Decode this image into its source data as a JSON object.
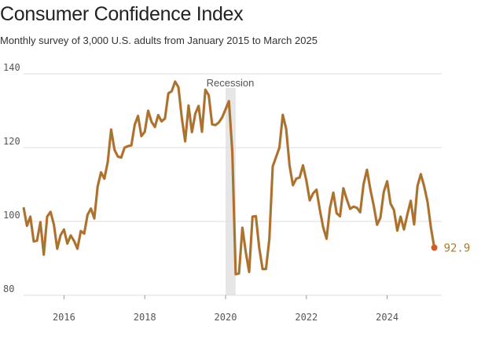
{
  "title": "Consumer Confidence Index",
  "subtitle": "Monthly survey of 3,000 U.S. adults from January 2015 to March 2025",
  "chart_data": {
    "type": "line",
    "title": "Consumer Confidence Index",
    "subtitle": "Monthly survey of 3,000 U.S. adults from January 2015 to March 2025",
    "ylim": [
      80,
      140
    ],
    "xlim": [
      2015,
      2025.35
    ],
    "y_ticks": [
      80,
      100,
      120,
      140
    ],
    "x_ticks": [
      2016,
      2018,
      2020,
      2022,
      2024
    ],
    "x_tick_labels": [
      "2016",
      "2018",
      "2020",
      "2022",
      "2024"
    ],
    "grid": "horizontal",
    "annotation": {
      "label": "Recession",
      "x_start": 2020.0,
      "x_end": 2020.25
    },
    "last_value_label": "92.9",
    "colors": {
      "line": "#9a7a2a",
      "accent": "#d35a2a",
      "grid": "#dddddd",
      "shade": "#e6e6e6"
    },
    "series": [
      {
        "values": [
          [
            2015.0,
            103.8
          ],
          [
            2015.083,
            98.8
          ],
          [
            2015.167,
            101.3
          ],
          [
            2015.25,
            94.6
          ],
          [
            2015.333,
            94.8
          ],
          [
            2015.417,
            99.8
          ],
          [
            2015.5,
            91.0
          ],
          [
            2015.583,
            101.3
          ],
          [
            2015.667,
            102.6
          ],
          [
            2015.75,
            99.1
          ],
          [
            2015.833,
            92.6
          ],
          [
            2015.917,
            96.3
          ],
          [
            2016.0,
            97.8
          ],
          [
            2016.083,
            94.0
          ],
          [
            2016.167,
            96.2
          ],
          [
            2016.25,
            94.7
          ],
          [
            2016.333,
            92.6
          ],
          [
            2016.417,
            97.4
          ],
          [
            2016.5,
            96.7
          ],
          [
            2016.583,
            101.8
          ],
          [
            2016.667,
            103.5
          ],
          [
            2016.75,
            100.8
          ],
          [
            2016.833,
            109.4
          ],
          [
            2016.917,
            113.3
          ],
          [
            2017.0,
            111.6
          ],
          [
            2017.083,
            116.1
          ],
          [
            2017.167,
            124.9
          ],
          [
            2017.25,
            119.4
          ],
          [
            2017.333,
            117.6
          ],
          [
            2017.417,
            117.3
          ],
          [
            2017.5,
            120.0
          ],
          [
            2017.583,
            120.4
          ],
          [
            2017.667,
            120.6
          ],
          [
            2017.75,
            126.2
          ],
          [
            2017.833,
            128.6
          ],
          [
            2017.917,
            123.1
          ],
          [
            2018.0,
            124.3
          ],
          [
            2018.083,
            130.0
          ],
          [
            2018.167,
            127.0
          ],
          [
            2018.25,
            125.6
          ],
          [
            2018.333,
            128.8
          ],
          [
            2018.417,
            127.1
          ],
          [
            2018.5,
            127.9
          ],
          [
            2018.583,
            134.7
          ],
          [
            2018.667,
            135.3
          ],
          [
            2018.75,
            137.9
          ],
          [
            2018.833,
            136.4
          ],
          [
            2018.917,
            128.1
          ],
          [
            2019.0,
            121.7
          ],
          [
            2019.083,
            131.4
          ],
          [
            2019.167,
            124.2
          ],
          [
            2019.25,
            129.2
          ],
          [
            2019.333,
            131.3
          ],
          [
            2019.417,
            124.3
          ],
          [
            2019.5,
            135.7
          ],
          [
            2019.583,
            134.2
          ],
          [
            2019.667,
            126.3
          ],
          [
            2019.75,
            126.1
          ],
          [
            2019.833,
            126.8
          ],
          [
            2019.917,
            128.2
          ],
          [
            2020.0,
            130.4
          ],
          [
            2020.083,
            132.6
          ],
          [
            2020.167,
            118.8
          ],
          [
            2020.25,
            85.7
          ],
          [
            2020.333,
            85.9
          ],
          [
            2020.417,
            98.3
          ],
          [
            2020.5,
            91.7
          ],
          [
            2020.583,
            86.3
          ],
          [
            2020.667,
            101.3
          ],
          [
            2020.75,
            101.4
          ],
          [
            2020.833,
            92.9
          ],
          [
            2020.917,
            87.1
          ],
          [
            2021.0,
            87.1
          ],
          [
            2021.083,
            95.2
          ],
          [
            2021.167,
            114.9
          ],
          [
            2021.25,
            117.5
          ],
          [
            2021.333,
            120.0
          ],
          [
            2021.417,
            128.9
          ],
          [
            2021.5,
            125.1
          ],
          [
            2021.583,
            115.2
          ],
          [
            2021.667,
            109.8
          ],
          [
            2021.75,
            111.6
          ],
          [
            2021.833,
            111.9
          ],
          [
            2021.917,
            115.2
          ],
          [
            2022.0,
            111.1
          ],
          [
            2022.083,
            105.7
          ],
          [
            2022.167,
            107.6
          ],
          [
            2022.25,
            108.6
          ],
          [
            2022.333,
            103.2
          ],
          [
            2022.417,
            98.4
          ],
          [
            2022.5,
            95.3
          ],
          [
            2022.583,
            103.6
          ],
          [
            2022.667,
            107.8
          ],
          [
            2022.75,
            102.2
          ],
          [
            2022.833,
            101.4
          ],
          [
            2022.917,
            109.0
          ],
          [
            2023.0,
            106.0
          ],
          [
            2023.083,
            103.4
          ],
          [
            2023.167,
            104.0
          ],
          [
            2023.25,
            103.7
          ],
          [
            2023.333,
            102.5
          ],
          [
            2023.417,
            110.1
          ],
          [
            2023.5,
            114.0
          ],
          [
            2023.583,
            108.7
          ],
          [
            2023.667,
            104.3
          ],
          [
            2023.75,
            99.1
          ],
          [
            2023.833,
            101.0
          ],
          [
            2023.917,
            108.0
          ],
          [
            2024.0,
            110.9
          ],
          [
            2024.083,
            104.8
          ],
          [
            2024.167,
            103.1
          ],
          [
            2024.25,
            97.5
          ],
          [
            2024.333,
            101.3
          ],
          [
            2024.417,
            97.8
          ],
          [
            2024.5,
            101.9
          ],
          [
            2024.583,
            105.6
          ],
          [
            2024.667,
            99.2
          ],
          [
            2024.75,
            109.6
          ],
          [
            2024.833,
            112.8
          ],
          [
            2024.917,
            109.5
          ],
          [
            2025.0,
            105.3
          ],
          [
            2025.083,
            98.3
          ],
          [
            2025.167,
            92.9
          ]
        ]
      }
    ]
  }
}
